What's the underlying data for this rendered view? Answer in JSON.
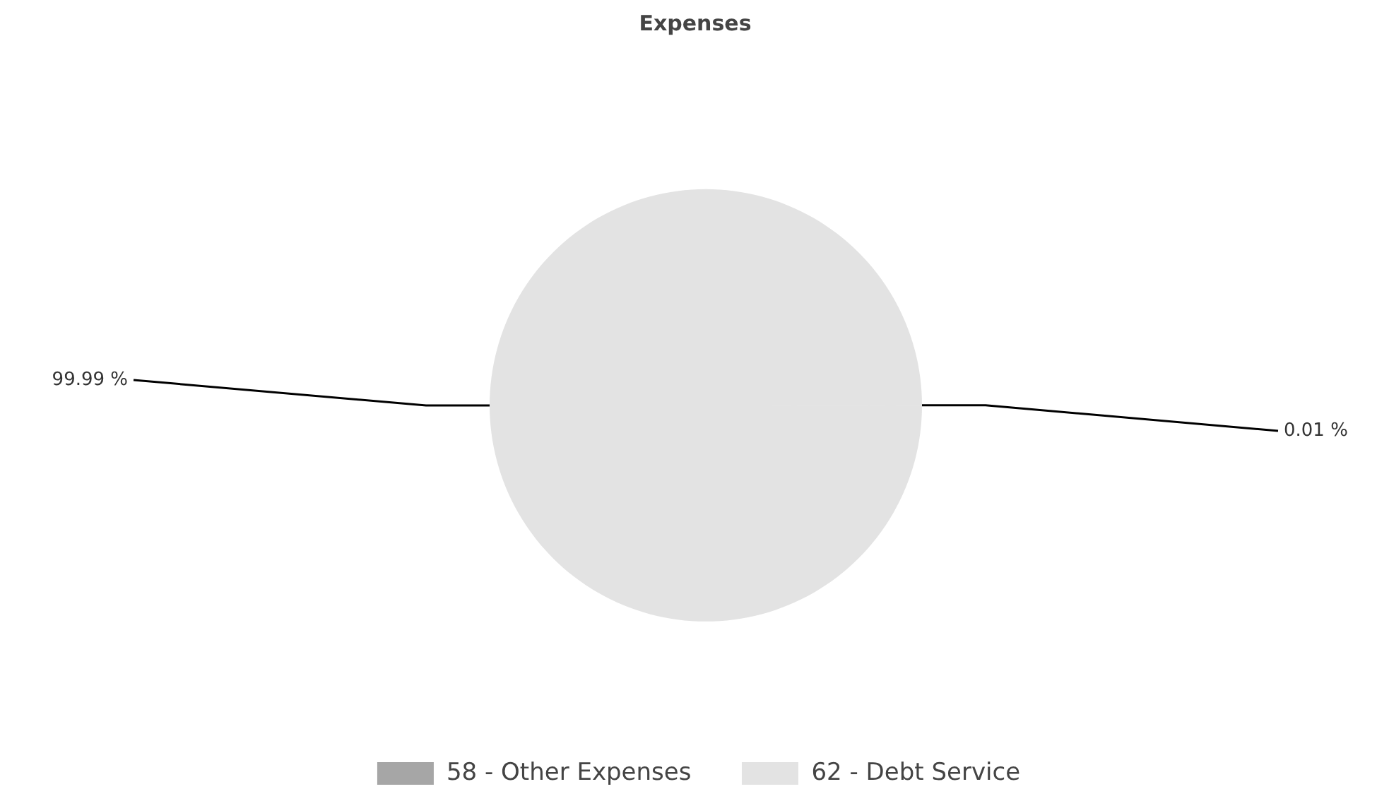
{
  "chart_data": {
    "type": "pie",
    "title": "Expenses",
    "categories": [
      "58 - Other Expenses",
      "62 - Debt Service"
    ],
    "values": [
      0.01,
      99.99
    ],
    "colors": [
      "#a6a6a6",
      "#e3e3e3"
    ],
    "value_labels": [
      "0.01 %",
      "99.99 %"
    ],
    "legend": "bottom"
  }
}
